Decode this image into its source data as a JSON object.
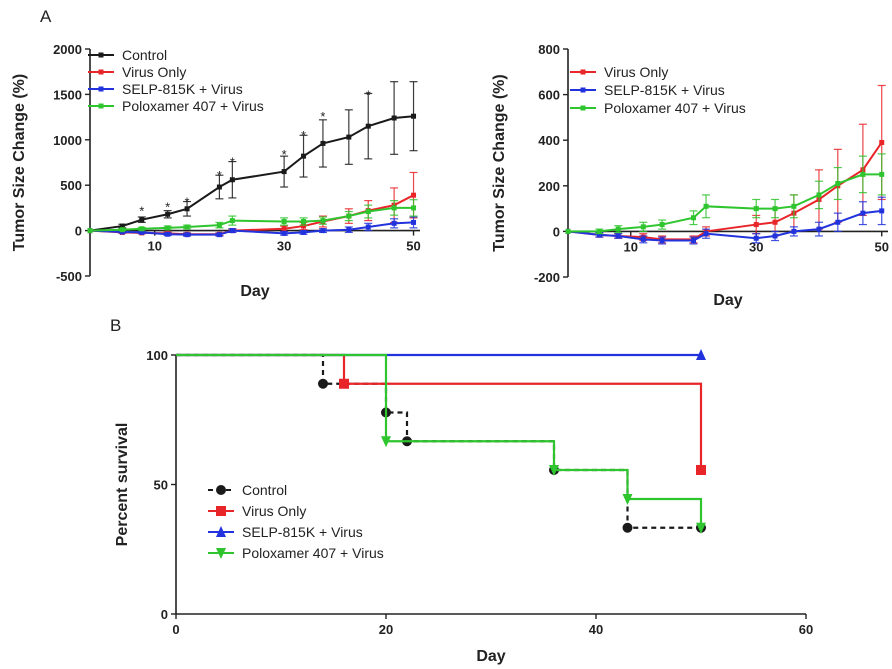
{
  "panel_labels": [
    "A",
    "B"
  ],
  "colors": {
    "Control": "#1a1a1a",
    "Virus Only": "#e8262a",
    "SELP-815K + Virus": "#2233dd",
    "Poloxamer 407 + Virus": "#2ec52e"
  },
  "chart_data": [
    {
      "type": "line",
      "panel": "A",
      "xlabel": "Day",
      "ylabel": "Tumor Size Change (%)",
      "xlim": [
        0,
        51
      ],
      "ylim": [
        -500,
        2000
      ],
      "xticks": [
        10,
        30,
        50
      ],
      "yticks": [
        -500,
        0,
        500,
        1000,
        1500,
        2000
      ],
      "legend_position": "top-left",
      "significance_marks": [
        {
          "x": 8,
          "y": 210,
          "label": "*"
        },
        {
          "x": 12,
          "y": 255,
          "label": "*"
        },
        {
          "x": 15,
          "y": 310,
          "label": "*"
        },
        {
          "x": 20,
          "y": 600,
          "label": "*"
        },
        {
          "x": 22,
          "y": 750,
          "label": "*"
        },
        {
          "x": 30,
          "y": 830,
          "label": "*"
        },
        {
          "x": 33,
          "y": 1040,
          "label": "*"
        },
        {
          "x": 36,
          "y": 1250,
          "label": "*"
        },
        {
          "x": 43,
          "y": 1490,
          "label": "*"
        }
      ],
      "series": [
        {
          "name": "Control",
          "x": [
            0,
            5,
            8,
            12,
            15,
            20,
            22,
            30,
            33,
            36,
            40,
            43,
            47,
            50
          ],
          "y": [
            0,
            50,
            120,
            180,
            240,
            480,
            560,
            650,
            820,
            960,
            1030,
            1150,
            1240,
            1260
          ],
          "err": [
            0,
            20,
            30,
            40,
            80,
            130,
            200,
            170,
            230,
            260,
            300,
            360,
            400,
            380
          ]
        },
        {
          "name": "Virus Only",
          "x": [
            0,
            5,
            8,
            12,
            15,
            20,
            22,
            30,
            33,
            36,
            40,
            43,
            47,
            50
          ],
          "y": [
            0,
            -20,
            -25,
            -30,
            -40,
            -40,
            0,
            20,
            50,
            100,
            160,
            220,
            280,
            390
          ],
          "err": [
            0,
            10,
            10,
            15,
            15,
            15,
            20,
            30,
            40,
            60,
            80,
            110,
            190,
            250
          ]
        },
        {
          "name": "SELP-815K + Virus",
          "x": [
            0,
            5,
            8,
            12,
            15,
            20,
            22,
            30,
            33,
            36,
            40,
            43,
            47,
            50
          ],
          "y": [
            0,
            -15,
            -20,
            -40,
            -45,
            -45,
            0,
            -30,
            -20,
            0,
            10,
            40,
            80,
            90
          ],
          "err": [
            0,
            10,
            10,
            15,
            15,
            15,
            20,
            20,
            20,
            20,
            30,
            40,
            50,
            60
          ]
        },
        {
          "name": "Poloxamer 407 + Virus",
          "x": [
            0,
            5,
            8,
            12,
            15,
            20,
            22,
            30,
            33,
            36,
            40,
            43,
            47,
            50
          ],
          "y": [
            0,
            10,
            20,
            30,
            40,
            60,
            110,
            100,
            100,
            110,
            160,
            210,
            250,
            250
          ],
          "err": [
            0,
            10,
            15,
            20,
            20,
            30,
            50,
            40,
            40,
            40,
            50,
            70,
            80,
            90
          ]
        }
      ]
    },
    {
      "type": "line",
      "panel": "A",
      "xlabel": "Day",
      "ylabel": "Tumor Size Change (%)",
      "xlim": [
        0,
        51
      ],
      "ylim": [
        -200,
        800
      ],
      "xticks": [
        10,
        30,
        50
      ],
      "yticks": [
        -200,
        0,
        200,
        400,
        600,
        800
      ],
      "legend_position": "top-left",
      "series": [
        {
          "name": "Virus Only",
          "x": [
            0,
            5,
            8,
            12,
            15,
            20,
            22,
            30,
            33,
            36,
            40,
            43,
            47,
            50
          ],
          "y": [
            0,
            -15,
            -20,
            -25,
            -35,
            -35,
            0,
            30,
            40,
            80,
            140,
            200,
            270,
            390
          ],
          "err": [
            0,
            10,
            10,
            15,
            15,
            15,
            20,
            40,
            60,
            80,
            130,
            160,
            200,
            250
          ]
        },
        {
          "name": "SELP-815K + Virus",
          "x": [
            0,
            5,
            8,
            12,
            15,
            20,
            22,
            30,
            33,
            36,
            40,
            43,
            47,
            50
          ],
          "y": [
            0,
            -15,
            -20,
            -35,
            -40,
            -40,
            -10,
            -30,
            -20,
            0,
            10,
            40,
            80,
            90
          ],
          "err": [
            0,
            10,
            10,
            15,
            15,
            15,
            20,
            20,
            20,
            20,
            30,
            40,
            50,
            60
          ]
        },
        {
          "name": "Poloxamer 407 + Virus",
          "x": [
            0,
            5,
            8,
            12,
            15,
            20,
            22,
            30,
            33,
            36,
            40,
            43,
            47,
            50
          ],
          "y": [
            0,
            0,
            10,
            20,
            30,
            60,
            110,
            100,
            100,
            110,
            160,
            210,
            250,
            250
          ],
          "err": [
            0,
            10,
            15,
            20,
            20,
            30,
            50,
            40,
            40,
            50,
            60,
            70,
            80,
            90
          ]
        }
      ]
    },
    {
      "type": "line",
      "panel": "B",
      "step": true,
      "xlabel": "Day",
      "ylabel": "Percent survival",
      "xlim": [
        0,
        60
      ],
      "ylim": [
        0,
        100
      ],
      "xticks": [
        0,
        20,
        40,
        60
      ],
      "yticks": [
        0,
        50,
        100
      ],
      "legend_position": "bottom-left",
      "series": [
        {
          "name": "Control",
          "marker": "circle",
          "dash": true,
          "x": [
            0,
            14,
            20,
            22,
            36,
            43,
            50
          ],
          "y": [
            100,
            88.9,
            77.8,
            66.7,
            55.6,
            33.3,
            33.3
          ]
        },
        {
          "name": "Virus Only",
          "marker": "square",
          "x": [
            0,
            16,
            50
          ],
          "y": [
            100,
            88.9,
            55.6
          ]
        },
        {
          "name": "SELP-815K + Virus",
          "marker": "triangle-up",
          "x": [
            0,
            50
          ],
          "y": [
            100,
            100
          ]
        },
        {
          "name": "Poloxamer 407 + Virus",
          "marker": "triangle-down",
          "x": [
            0,
            20,
            36,
            43,
            50
          ],
          "y": [
            100,
            66.7,
            55.6,
            44.4,
            33.3
          ]
        }
      ]
    }
  ]
}
